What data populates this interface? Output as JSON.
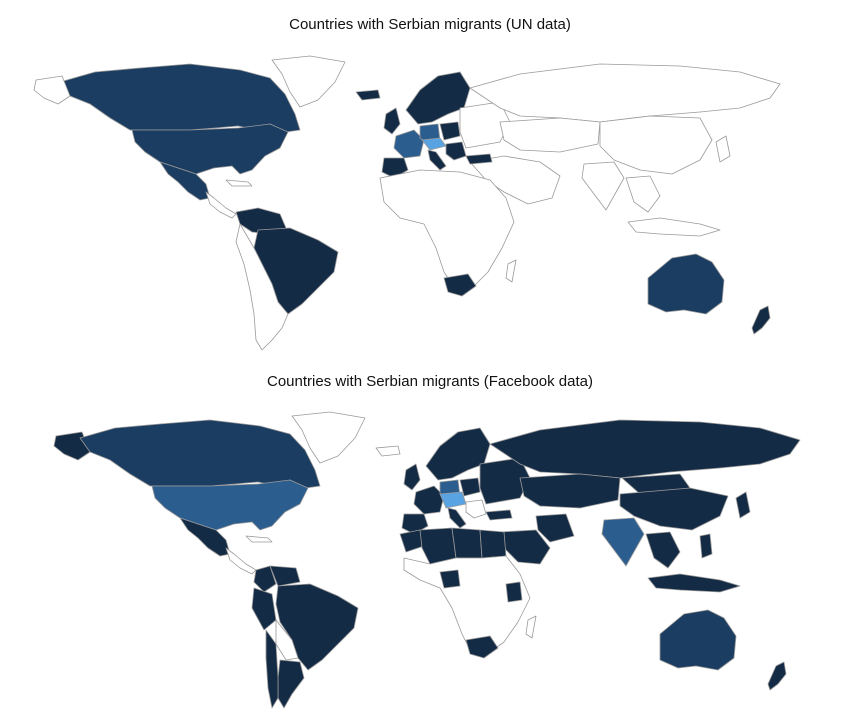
{
  "maps": [
    {
      "title": "Countries with Serbian migrants (UN data)",
      "colors": {
        "none": "#ffffff",
        "low": "#142b45",
        "mid": "#1b3d62",
        "high": "#2c5d8f",
        "top": "#5aa3e2"
      },
      "countries": [
        {
          "name": "Canada",
          "level": "mid"
        },
        {
          "name": "United States",
          "level": "mid"
        },
        {
          "name": "Mexico",
          "level": "mid"
        },
        {
          "name": "Brazil",
          "level": "low"
        },
        {
          "name": "Venezuela",
          "level": "low"
        },
        {
          "name": "Australia",
          "level": "mid"
        },
        {
          "name": "New Zealand",
          "level": "low"
        },
        {
          "name": "South Africa",
          "level": "low"
        },
        {
          "name": "Norway",
          "level": "low"
        },
        {
          "name": "Sweden",
          "level": "low"
        },
        {
          "name": "Finland",
          "level": "low"
        },
        {
          "name": "Iceland",
          "level": "low"
        },
        {
          "name": "United Kingdom",
          "level": "low"
        },
        {
          "name": "France",
          "level": "high"
        },
        {
          "name": "Spain",
          "level": "low"
        },
        {
          "name": "Italy",
          "level": "low"
        },
        {
          "name": "Germany",
          "level": "high"
        },
        {
          "name": "Austria",
          "level": "top"
        },
        {
          "name": "Switzerland",
          "level": "top"
        },
        {
          "name": "Poland",
          "level": "low"
        },
        {
          "name": "Hungary",
          "level": "low"
        },
        {
          "name": "Croatia",
          "level": "low"
        },
        {
          "name": "Greece",
          "level": "low"
        },
        {
          "name": "Turkey",
          "level": "low"
        }
      ]
    },
    {
      "title": "Countries with Serbian migrants (Facebook data)",
      "colors": {
        "none": "#ffffff",
        "low": "#142b45",
        "mid": "#1b3d62",
        "high": "#2c5d8f",
        "top": "#5aa3e2"
      },
      "countries": [
        {
          "name": "Canada",
          "level": "mid"
        },
        {
          "name": "United States",
          "level": "high"
        },
        {
          "name": "Mexico",
          "level": "low"
        },
        {
          "name": "Colombia",
          "level": "low"
        },
        {
          "name": "Venezuela",
          "level": "low"
        },
        {
          "name": "Peru",
          "level": "low"
        },
        {
          "name": "Brazil",
          "level": "low"
        },
        {
          "name": "Argentina",
          "level": "low"
        },
        {
          "name": "Chile",
          "level": "low"
        },
        {
          "name": "Russia",
          "level": "low"
        },
        {
          "name": "Kazakhstan",
          "level": "low"
        },
        {
          "name": "China",
          "level": "low"
        },
        {
          "name": "Mongolia",
          "level": "low"
        },
        {
          "name": "India",
          "level": "high"
        },
        {
          "name": "Saudi Arabia",
          "level": "low"
        },
        {
          "name": "Iran",
          "level": "low"
        },
        {
          "name": "Algeria",
          "level": "low"
        },
        {
          "name": "Libya",
          "level": "low"
        },
        {
          "name": "Egypt",
          "level": "low"
        },
        {
          "name": "Morocco",
          "level": "low"
        },
        {
          "name": "Nigeria",
          "level": "low"
        },
        {
          "name": "Kenya",
          "level": "low"
        },
        {
          "name": "South Africa",
          "level": "low"
        },
        {
          "name": "Thailand",
          "level": "low"
        },
        {
          "name": "Indonesia",
          "level": "low"
        },
        {
          "name": "Philippines",
          "level": "low"
        },
        {
          "name": "Japan",
          "level": "low"
        },
        {
          "name": "Australia",
          "level": "mid"
        },
        {
          "name": "New Zealand",
          "level": "low"
        },
        {
          "name": "Germany",
          "level": "high"
        },
        {
          "name": "Austria",
          "level": "top"
        },
        {
          "name": "Switzerland",
          "level": "top"
        },
        {
          "name": "France",
          "level": "low"
        },
        {
          "name": "Spain",
          "level": "low"
        },
        {
          "name": "United Kingdom",
          "level": "low"
        },
        {
          "name": "Italy",
          "level": "low"
        },
        {
          "name": "Norway",
          "level": "low"
        },
        {
          "name": "Sweden",
          "level": "low"
        },
        {
          "name": "Finland",
          "level": "low"
        },
        {
          "name": "Poland",
          "level": "low"
        },
        {
          "name": "Turkey",
          "level": "low"
        }
      ]
    }
  ]
}
